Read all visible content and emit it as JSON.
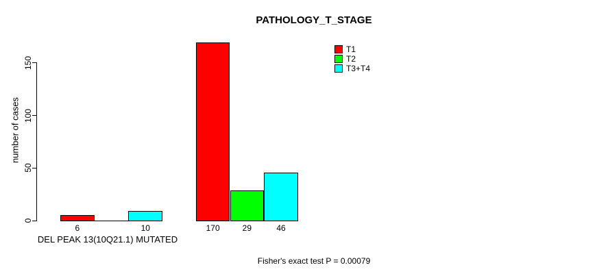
{
  "chart_data": {
    "type": "bar",
    "title": "PATHOLOGY_T_STAGE",
    "ylabel": "number of cases",
    "xlabel": "DEL PEAK 13(10Q21.1) MUTATED",
    "annotation": "Fisher's exact test P = 0.00079",
    "ylim": [
      0,
      170
    ],
    "yticks": [
      0,
      50,
      100,
      150
    ],
    "grid": false,
    "legend_position": "top-right",
    "series": [
      {
        "name": "T1",
        "color": "#ff0000",
        "values": [
          6,
          170
        ]
      },
      {
        "name": "T2",
        "color": "#00ff00",
        "values": [
          0,
          29
        ]
      },
      {
        "name": "T3+T4",
        "color": "#00ffff",
        "values": [
          10,
          46
        ]
      }
    ],
    "groups": [
      {
        "bar_labels": [
          "6",
          "",
          "10"
        ]
      },
      {
        "bar_labels": [
          "170",
          "29",
          "46"
        ]
      }
    ]
  }
}
